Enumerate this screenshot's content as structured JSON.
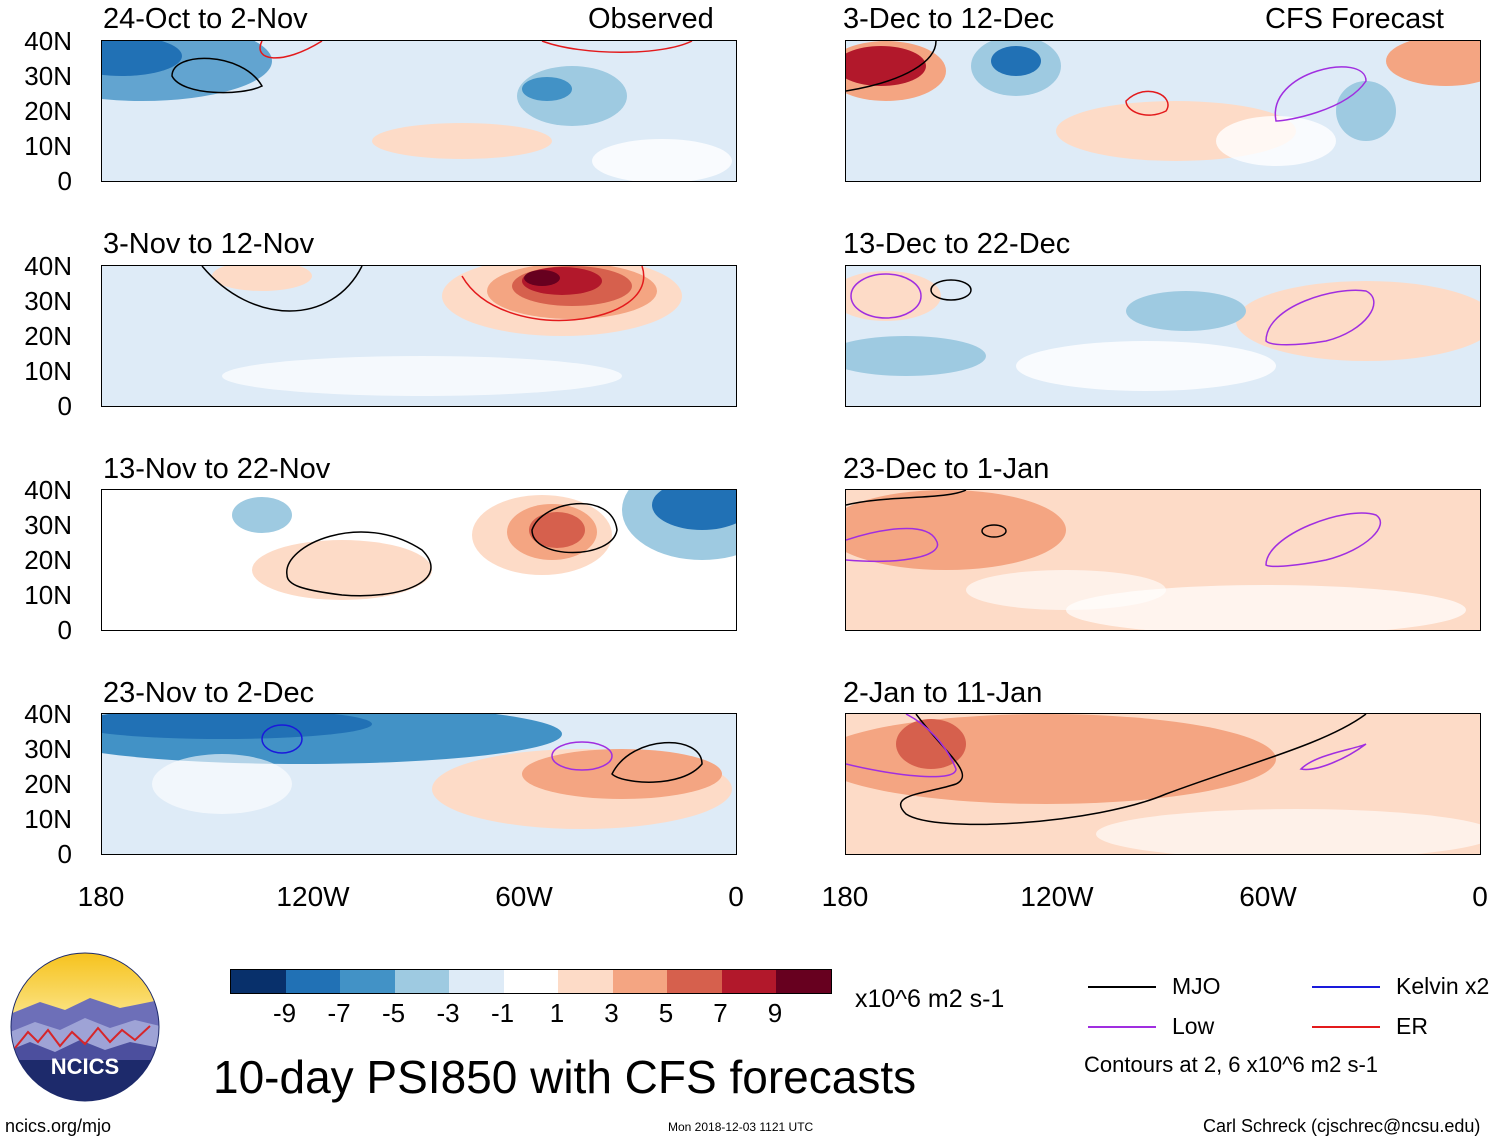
{
  "panels": {
    "left": [
      {
        "label": "24-Oct to 2-Nov",
        "tag": "Observed"
      },
      {
        "label": "3-Nov to 12-Nov",
        "tag": ""
      },
      {
        "label": "13-Nov to 22-Nov",
        "tag": ""
      },
      {
        "label": "23-Nov to 2-Dec",
        "tag": ""
      }
    ],
    "right": [
      {
        "label": "3-Dec to 12-Dec",
        "tag": "CFS Forecast"
      },
      {
        "label": "13-Dec to 22-Dec",
        "tag": ""
      },
      {
        "label": "23-Dec to 1-Jan",
        "tag": ""
      },
      {
        "label": "2-Jan to 11-Jan",
        "tag": ""
      }
    ]
  },
  "axes": {
    "lat_labels": [
      "40N",
      "30N",
      "20N",
      "10N",
      "0"
    ],
    "lon_labels": [
      "180",
      "120W",
      "60W",
      "0"
    ]
  },
  "colorbar": {
    "colors": [
      "#08306b",
      "#2171b5",
      "#4292c6",
      "#9ecae1",
      "#deebf7",
      "#ffffff",
      "#fddbc7",
      "#f4a582",
      "#d6604d",
      "#b2182b",
      "#67001f"
    ],
    "labels": [
      "-9",
      "-7",
      "-5",
      "-3",
      "-1",
      "1",
      "3",
      "5",
      "7",
      "9"
    ],
    "units": "x10^6 m2 s-1"
  },
  "legend": {
    "items": [
      {
        "name": "MJO",
        "color": "#000000"
      },
      {
        "name": "Kelvin x2",
        "color": "#1a1adb"
      },
      {
        "name": "Low",
        "color": "#a02ee0"
      },
      {
        "name": "ER",
        "color": "#e31a1c"
      }
    ],
    "contours_note": "Contours at 2, 6 x10^6 m2 s-1"
  },
  "title": "10-day PSI850 with CFS forecasts",
  "logo_text": "NCICS",
  "footer": {
    "website": "ncics.org/mjo",
    "timestamp": "Mon 2018-12-03 1121 UTC",
    "author": "Carl Schreck (cjschrec@ncsu.edu)"
  }
}
